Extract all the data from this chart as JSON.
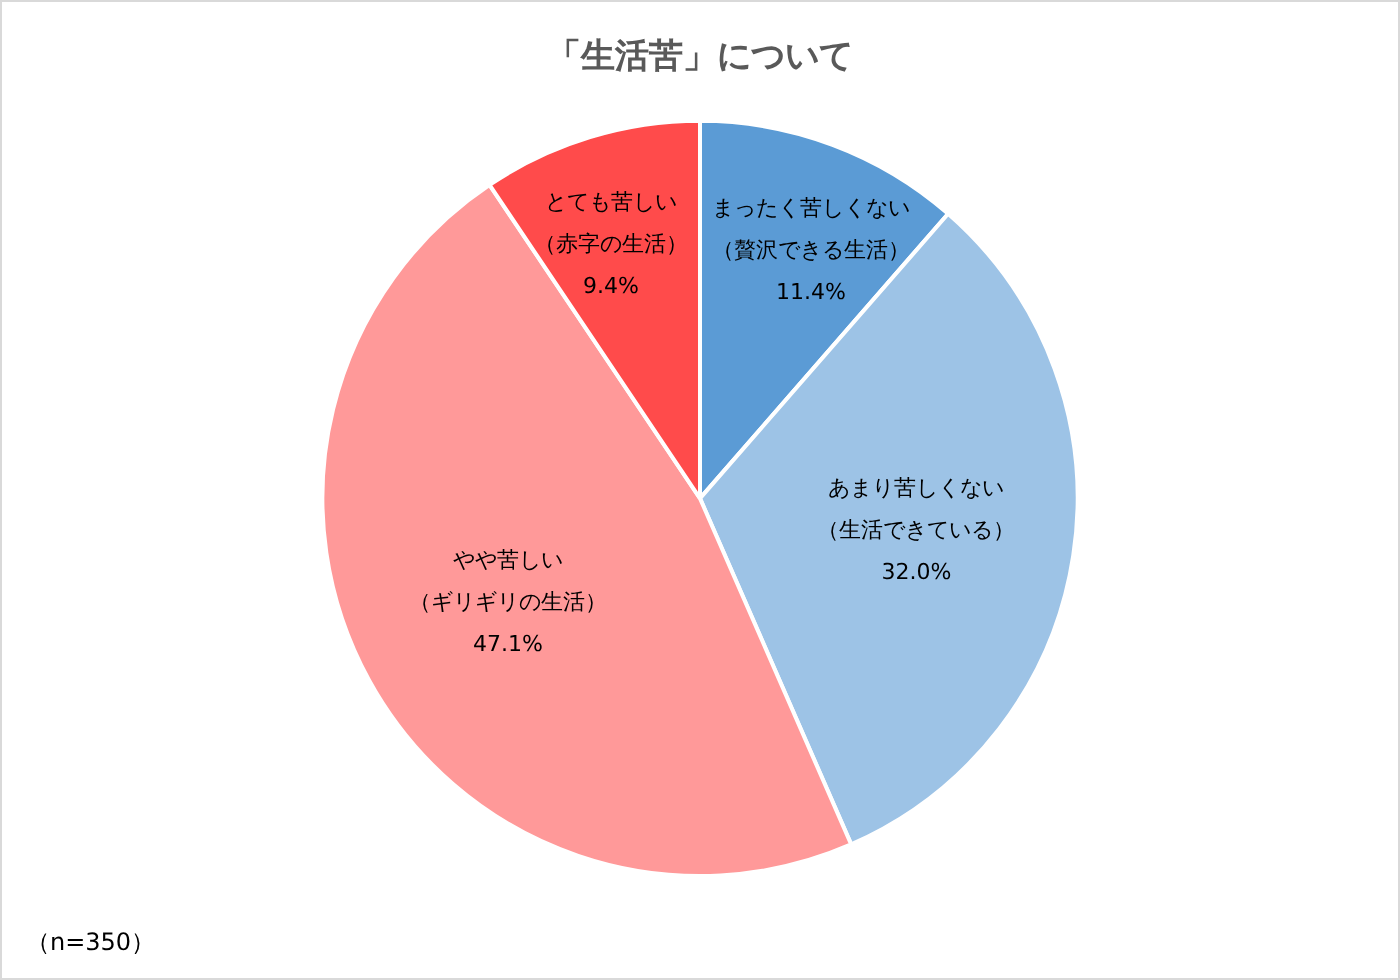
{
  "chart_data": {
    "type": "pie",
    "title": "「生活苦」について",
    "categories": [
      "まったく苦しくない（贅沢できる生活）",
      "あまり苦しくない（生活できている）",
      "やや苦しい（ギリギリの生活）",
      "とても苦しい（赤字の生活）"
    ],
    "values": [
      11.4,
      32.0,
      47.1,
      9.4
    ],
    "value_labels": [
      "11.4%",
      "32.0%",
      "47.1%",
      "9.4%"
    ],
    "colors": [
      "#5b9bd5",
      "#9dc3e6",
      "#ff9999",
      "#ff4b4b"
    ],
    "legend": false,
    "annotations": [
      "（n=350）"
    ]
  }
}
